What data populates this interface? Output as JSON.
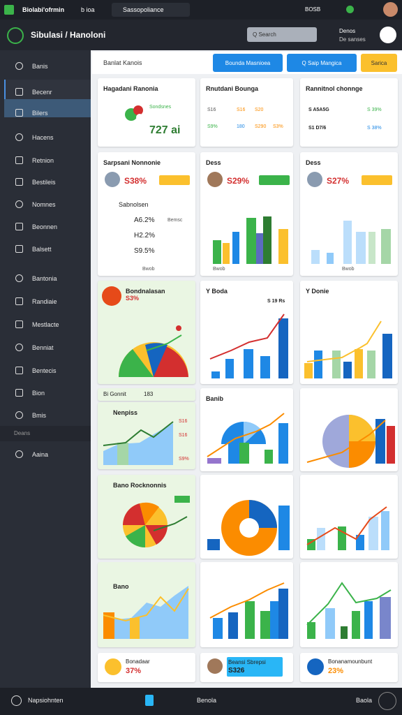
{
  "topbar": {
    "app": "Biolabi'ofrmin",
    "tab1": "b ioa",
    "tab2": "Sassopoliance",
    "clock": "BOSB"
  },
  "header": {
    "title": "Sibulasi / Hanoloni",
    "search": "Q Search",
    "user": "Denos",
    "user_sub": "De sanses"
  },
  "sidebar": {
    "items": [
      "Banis",
      "Becenr",
      "Bilers",
      "Hacens",
      "Retnion",
      "Bestileis",
      "Nomnes",
      "Beonnen",
      "Balsett",
      "Bantonia",
      "Randiaie",
      "Mestlacte",
      "Benniat",
      "Bentecis",
      "Bion",
      "Bmis"
    ],
    "section": "Deans",
    "last": "Aaina"
  },
  "toolbar": {
    "title": "Banlat Kanois",
    "buttons": [
      "Bounda Masnioea",
      "Q Saip Mangica",
      "Sarica"
    ]
  },
  "cards": [
    {
      "title": "Hagadani Ranonia",
      "sub": "Sondsnes",
      "value": "727 ai"
    },
    {
      "title": "Rnutdani Bounga",
      "lines": [
        "S16",
        "S16",
        "S20",
        "S9%",
        "180",
        "S290",
        "S3%"
      ]
    },
    {
      "title": "Rannitnol chonnge",
      "lines": [
        "S A5A5G",
        "S 39%",
        "S1 D7/6",
        "S 38%"
      ]
    },
    {
      "title": "Sarpsani Nonnonie",
      "value": "S38%",
      "sub": "Sabnolsen",
      "lines": [
        "A6.2%",
        "H2.2%",
        "S9.5%"
      ],
      "note": "Bemsc",
      "foot": "Bwob"
    },
    {
      "title": "Dess",
      "value": "S29%",
      "foot": "Bwob"
    },
    {
      "title": "Dess",
      "value": "S27%",
      "foot": "Bwob"
    },
    {
      "title": "Bondnalasan",
      "value": "S3%"
    },
    {
      "title": "Y Boda",
      "value": "S 19 Rs"
    },
    {
      "title": "Y Donie"
    },
    {
      "title": "Bi Gonnit",
      "value": "183"
    },
    {
      "title": "Nenpiss",
      "lines": [
        "S16",
        "S16",
        "S9%"
      ]
    },
    {
      "title": "Banib"
    },
    {
      "title": "Bano Rocknonnis"
    },
    {
      "title": "Bano"
    },
    {
      "title": "Bonadaar",
      "value": "37%"
    },
    {
      "title": "Beansi Sbrepsi",
      "value": "S326"
    },
    {
      "title": "Bonanamounbunt",
      "value": "23%"
    }
  ],
  "footer": {
    "left": "Napsiohnten",
    "mid": "Benola",
    "right": "Baola"
  }
}
